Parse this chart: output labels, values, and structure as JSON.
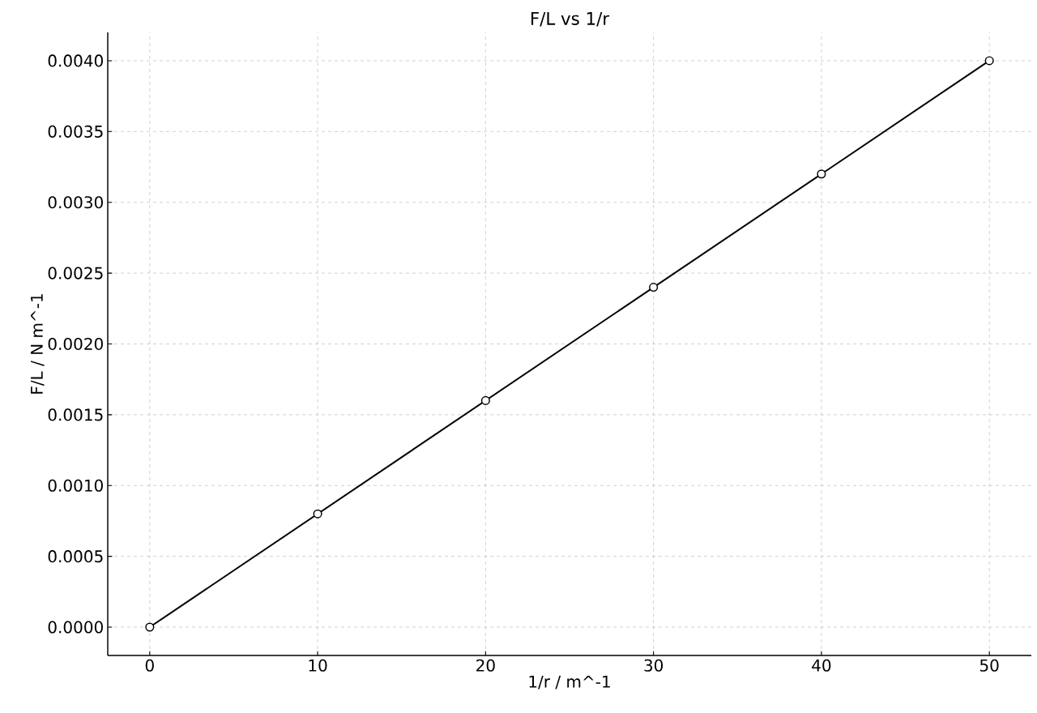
{
  "chart_data": {
    "type": "line",
    "title": "F/L vs 1/r",
    "xlabel": "1/r / m^-1",
    "ylabel": "F/L / N m^-1",
    "x": [
      0,
      10,
      20,
      30,
      40,
      50
    ],
    "series": [
      {
        "color": "#000000",
        "values": [
          0,
          0.0008,
          0.0016,
          0.0024,
          0.0032,
          0.004
        ]
      }
    ],
    "xlim": [
      -2.5,
      52.5
    ],
    "ylim": [
      -0.0002,
      0.0042
    ],
    "xticks": [
      0,
      10,
      20,
      30,
      40,
      50
    ],
    "yticks": [
      {
        "value": 0,
        "label": "0.0000"
      },
      {
        "value": 0.0005,
        "label": "0.0005"
      },
      {
        "value": 0.001,
        "label": "0.0010"
      },
      {
        "value": 0.0015,
        "label": "0.0015"
      },
      {
        "value": 0.002,
        "label": "0.0020"
      },
      {
        "value": 0.0025,
        "label": "0.0025"
      },
      {
        "value": 0.003,
        "label": "0.0030"
      },
      {
        "value": 0.0035,
        "label": "0.0035"
      },
      {
        "value": 0.004,
        "label": "0.0040"
      }
    ],
    "grid": true,
    "marker": "circle",
    "line_style": "solid"
  }
}
